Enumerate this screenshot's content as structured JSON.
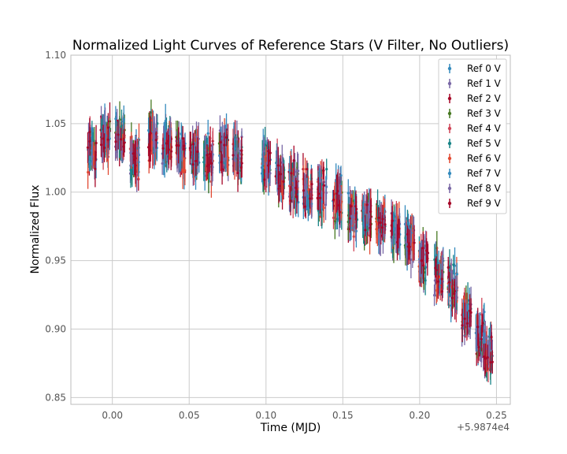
{
  "chart_data": {
    "type": "scatter",
    "title": "Normalized Light Curves of Reference Stars (V Filter, No Outliers)",
    "xlabel": "Time (MJD)",
    "ylabel": "Normalized Flux",
    "x_offset_label": "+5.9874e4",
    "xlim": [
      -0.027,
      0.259
    ],
    "ylim": [
      0.845,
      1.1
    ],
    "x_ticks": [
      0.0,
      0.05,
      0.1,
      0.15,
      0.2,
      0.25
    ],
    "x_tick_labels": [
      "0.00",
      "0.05",
      "0.10",
      "0.15",
      "0.20",
      "0.25"
    ],
    "y_ticks": [
      0.85,
      0.9,
      0.95,
      1.0,
      1.05,
      1.1
    ],
    "y_tick_labels": [
      "0.85",
      "0.90",
      "0.95",
      "1.00",
      "1.05",
      "1.10"
    ],
    "grid": true,
    "legend_position": "top-right",
    "error_bars": true,
    "observation_times": [
      -0.0135,
      -0.0045,
      0.005,
      0.0145,
      0.0265,
      0.0355,
      0.0445,
      0.0535,
      0.0625,
      0.0725,
      0.0815,
      0.1,
      0.109,
      0.118,
      0.127,
      0.1365,
      0.1465,
      0.1565,
      0.1655,
      0.1745,
      0.1845,
      0.1935,
      0.2025,
      0.2125,
      0.2215,
      0.2305,
      0.2395,
      0.2445
    ],
    "trend_flux": [
      1.03,
      1.04,
      1.04,
      1.025,
      1.04,
      1.035,
      1.03,
      1.028,
      1.025,
      1.03,
      1.025,
      1.02,
      1.015,
      1.005,
      1.0,
      1.0,
      0.995,
      0.985,
      0.982,
      0.978,
      0.972,
      0.965,
      0.95,
      0.94,
      0.93,
      0.91,
      0.895,
      0.885
    ],
    "series": [
      {
        "name": "Ref 0 V",
        "color": "#348abd"
      },
      {
        "name": "Ref 1 V",
        "color": "#7a68a6"
      },
      {
        "name": "Ref 2 V",
        "color": "#a60628"
      },
      {
        "name": "Ref 3 V",
        "color": "#467821"
      },
      {
        "name": "Ref 4 V",
        "color": "#cf4457"
      },
      {
        "name": "Ref 5 V",
        "color": "#188487"
      },
      {
        "name": "Ref 6 V",
        "color": "#e24a33"
      },
      {
        "name": "Ref 7 V",
        "color": "#348abd"
      },
      {
        "name": "Ref 8 V",
        "color": "#7a68a6"
      },
      {
        "name": "Ref 9 V",
        "color": "#a60628"
      }
    ]
  }
}
